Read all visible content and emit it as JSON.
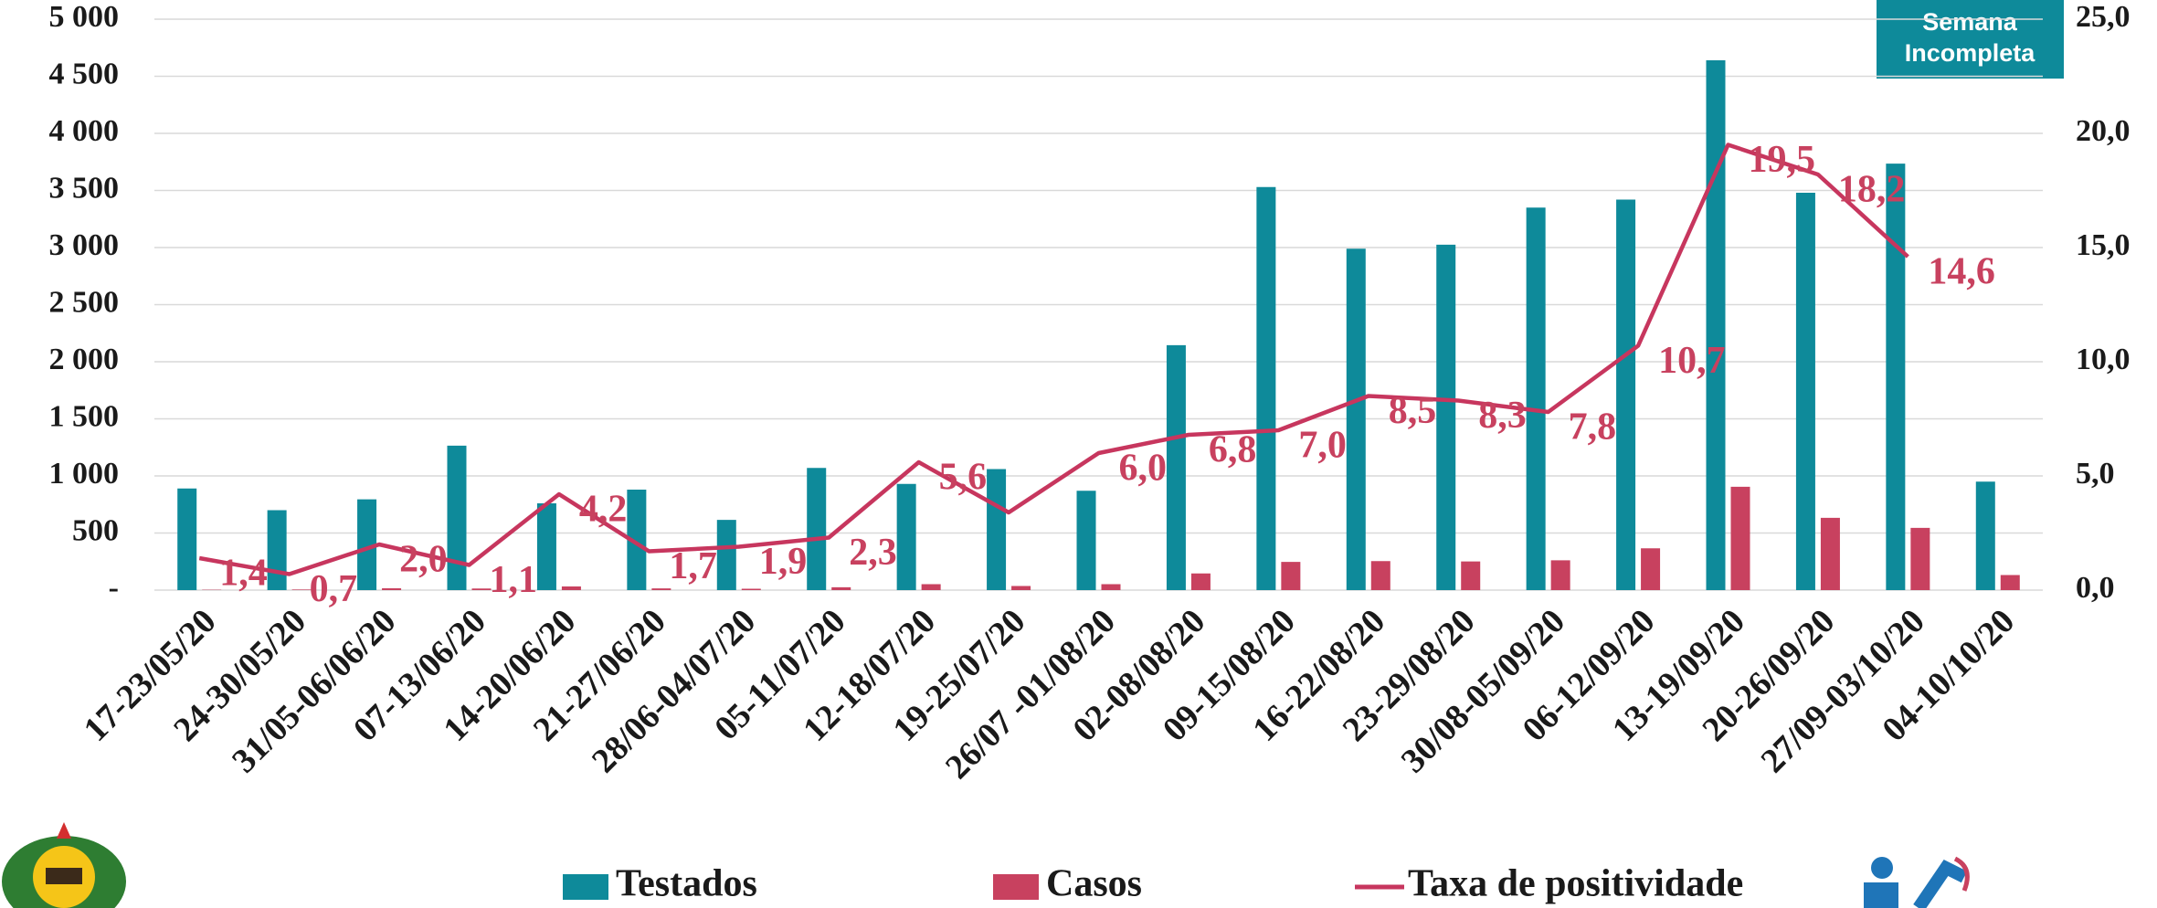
{
  "chart_data": {
    "type": "bar",
    "note": "Semana Incompleta",
    "categories": [
      "17-23/05/20",
      "24-30/05/20",
      "31/05-06/06/20",
      "07-13/06/20",
      "14-20/06/20",
      "21-27/06/20",
      "28/06-04/07/20",
      "05-11/07/20",
      "12-18/07/20",
      "19-25/07/20",
      "26/07 -01/08/20",
      "02-08/08/20",
      "09-15/08/20",
      "16-22/08/20",
      "23-29/08/20",
      "30/08-05/09/20",
      "06-12/09/20",
      "13-19/09/20",
      "20-26/09/20",
      "27/09-03/10/20",
      "04-10/10/20"
    ],
    "series": [
      {
        "name": "Testados",
        "color": "#0e8a9a",
        "values": [
          890,
          700,
          795,
          1265,
          760,
          880,
          615,
          1070,
          930,
          1060,
          870,
          2145,
          3530,
          2990,
          3025,
          3350,
          3420,
          4640,
          3480,
          3735,
          950
        ]
      },
      {
        "name": "Casos",
        "color": "#c8415f",
        "values": [
          3,
          5,
          16,
          14,
          32,
          15,
          12,
          25,
          52,
          36,
          52,
          146,
          247,
          254,
          251,
          261,
          366,
          905,
          633,
          545,
          132
        ]
      },
      {
        "name": "Taxa de positividade",
        "color": "#c7365e",
        "type": "line",
        "axis": "y2",
        "values": [
          1.4,
          0.7,
          2.0,
          1.1,
          4.2,
          1.7,
          1.9,
          2.3,
          5.6,
          3.4,
          6.0,
          6.8,
          7.0,
          8.5,
          8.3,
          7.8,
          10.7,
          19.5,
          18.2,
          14.6,
          null
        ],
        "value_labels": [
          "1,4",
          "0,7",
          "2,0",
          "1,1",
          "4,2",
          "1,7",
          "1,9",
          "2,3",
          "5,6",
          null,
          "6,0",
          "6,8",
          "7,0",
          "8,5",
          "8,3",
          "7,8",
          "10,7",
          "19,5",
          "18,2",
          "14,6",
          null
        ]
      }
    ],
    "ylim": [
      0,
      5000
    ],
    "yticks": [
      {
        "value": 0,
        "label": "-"
      },
      500,
      {
        "value": 1000,
        "label": "1 000"
      },
      {
        "value": 1500,
        "label": "1 500"
      },
      {
        "value": 2000,
        "label": "2 000"
      },
      {
        "value": 2500,
        "label": "2 500"
      },
      {
        "value": 3000,
        "label": "3 000"
      },
      {
        "value": 3500,
        "label": "3 500"
      },
      {
        "value": 4000,
        "label": "4 000"
      },
      {
        "value": 4500,
        "label": "4 500"
      },
      {
        "value": 5000,
        "label": "5 000"
      }
    ],
    "y2lim": [
      0,
      25
    ],
    "y2ticks": [
      {
        "value": 0,
        "label": "0,0"
      },
      {
        "value": 5,
        "label": "5,0"
      },
      {
        "value": 10,
        "label": "10,0"
      },
      {
        "value": 15,
        "label": "15,0"
      },
      {
        "value": 20,
        "label": "20,0"
      },
      {
        "value": 25,
        "label": "25,0"
      }
    ],
    "grid": true,
    "legend": "bottom"
  }
}
